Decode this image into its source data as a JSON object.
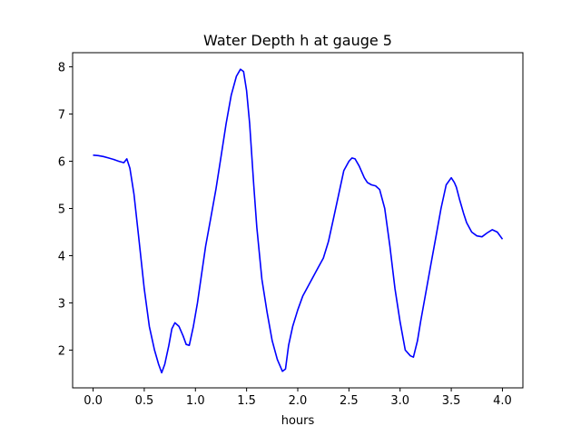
{
  "chart_data": {
    "type": "line",
    "title": "Water Depth h at gauge 5",
    "xlabel": "hours",
    "ylabel": "",
    "xlim": [
      -0.2,
      4.2
    ],
    "ylim": [
      1.2,
      8.3
    ],
    "xticks": [
      0.0,
      0.5,
      1.0,
      1.5,
      2.0,
      2.5,
      3.0,
      3.5,
      4.0
    ],
    "xtick_labels": [
      "0.0",
      "0.5",
      "1.0",
      "1.5",
      "2.0",
      "2.5",
      "3.0",
      "3.5",
      "4.0"
    ],
    "yticks": [
      2,
      3,
      4,
      5,
      6,
      7,
      8
    ],
    "ytick_labels": [
      "2",
      "3",
      "4",
      "5",
      "6",
      "7",
      "8"
    ],
    "grid": false,
    "series": [
      {
        "color": "#0000ff",
        "x": [
          0.0,
          0.05,
          0.1,
          0.15,
          0.2,
          0.25,
          0.3,
          0.33,
          0.36,
          0.4,
          0.45,
          0.5,
          0.55,
          0.6,
          0.64,
          0.67,
          0.7,
          0.74,
          0.77,
          0.8,
          0.84,
          0.88,
          0.91,
          0.94,
          0.98,
          1.02,
          1.06,
          1.1,
          1.15,
          1.2,
          1.25,
          1.3,
          1.35,
          1.4,
          1.44,
          1.47,
          1.5,
          1.53,
          1.57,
          1.6,
          1.65,
          1.7,
          1.75,
          1.8,
          1.85,
          1.88,
          1.91,
          1.95,
          2.0,
          2.05,
          2.1,
          2.15,
          2.2,
          2.25,
          2.3,
          2.35,
          2.4,
          2.45,
          2.5,
          2.53,
          2.56,
          2.6,
          2.65,
          2.68,
          2.72,
          2.76,
          2.8,
          2.85,
          2.9,
          2.95,
          3.0,
          3.05,
          3.1,
          3.13,
          3.17,
          3.2,
          3.25,
          3.3,
          3.35,
          3.4,
          3.45,
          3.5,
          3.53,
          3.55,
          3.58,
          3.62,
          3.65,
          3.7,
          3.75,
          3.8,
          3.85,
          3.9,
          3.95,
          4.0
        ],
        "y": [
          6.13,
          6.12,
          6.1,
          6.07,
          6.04,
          6.0,
          5.97,
          6.05,
          5.85,
          5.3,
          4.3,
          3.3,
          2.5,
          2.0,
          1.7,
          1.52,
          1.7,
          2.1,
          2.45,
          2.58,
          2.5,
          2.3,
          2.12,
          2.1,
          2.5,
          3.0,
          3.6,
          4.2,
          4.8,
          5.4,
          6.1,
          6.8,
          7.4,
          7.8,
          7.95,
          7.9,
          7.5,
          6.8,
          5.5,
          4.6,
          3.5,
          2.8,
          2.2,
          1.8,
          1.55,
          1.6,
          2.1,
          2.5,
          2.85,
          3.15,
          3.35,
          3.55,
          3.75,
          3.95,
          4.3,
          4.8,
          5.3,
          5.8,
          6.0,
          6.07,
          6.05,
          5.9,
          5.65,
          5.55,
          5.5,
          5.48,
          5.4,
          5.0,
          4.2,
          3.3,
          2.6,
          2.0,
          1.88,
          1.85,
          2.2,
          2.6,
          3.2,
          3.8,
          4.4,
          5.0,
          5.5,
          5.65,
          5.55,
          5.45,
          5.2,
          4.9,
          4.7,
          4.5,
          4.42,
          4.4,
          4.48,
          4.55,
          4.5,
          4.35
        ]
      }
    ]
  }
}
